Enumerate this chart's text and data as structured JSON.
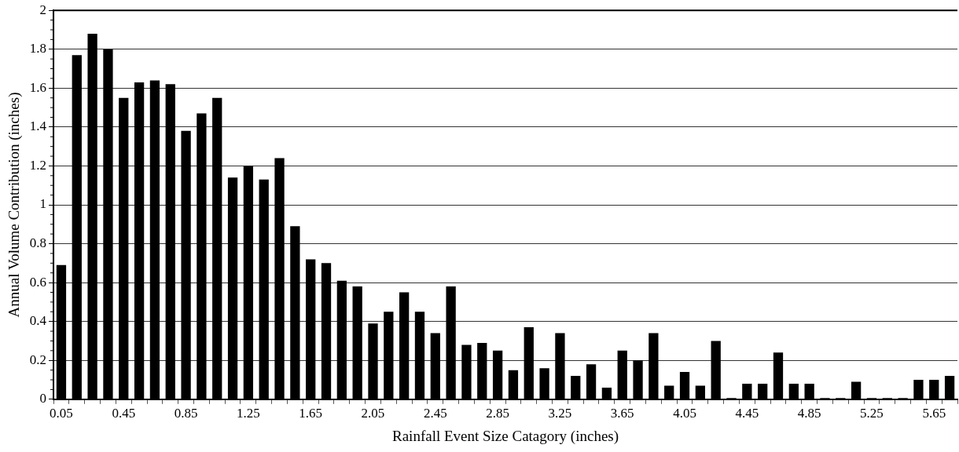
{
  "chart_data": {
    "type": "bar",
    "xlabel": "Rainfall Event Size Catagory (inches)",
    "ylabel": "Annual Volume Contribution (inches)",
    "categories": [
      "0.05",
      null,
      null,
      null,
      "0.45",
      null,
      null,
      null,
      "0.85",
      null,
      null,
      null,
      "1.25",
      null,
      null,
      null,
      "1.65",
      null,
      null,
      null,
      "2.05",
      null,
      null,
      null,
      "2.45",
      null,
      null,
      null,
      "2.85",
      null,
      null,
      null,
      "3.25",
      null,
      null,
      null,
      "3.65",
      null,
      null,
      null,
      "4.05",
      null,
      null,
      null,
      "4.45",
      null,
      null,
      null,
      "4.85",
      null,
      null,
      null,
      "5.25",
      null,
      null,
      null,
      "5.65",
      null
    ],
    "values": [
      0.69,
      1.77,
      1.88,
      1.8,
      1.55,
      1.63,
      1.64,
      1.62,
      1.38,
      1.47,
      1.55,
      1.14,
      1.2,
      1.13,
      1.24,
      0.89,
      0.72,
      0.7,
      0.61,
      0.58,
      0.39,
      0.45,
      0.55,
      0.45,
      0.34,
      0.58,
      0.28,
      0.29,
      0.25,
      0.15,
      0.37,
      0.16,
      0.34,
      0.12,
      0.18,
      0.06,
      0.25,
      0.2,
      0.34,
      0.07,
      0.14,
      0.07,
      0.3,
      0,
      0.08,
      0.08,
      0.24,
      0.08,
      0.08,
      0,
      0,
      0.09,
      0,
      0,
      0,
      0.1,
      0.1,
      0.12
    ],
    "color": "#000000",
    "ylim": [
      0,
      2
    ],
    "yticks": [
      0,
      0.2,
      0.4,
      0.6,
      0.8,
      1,
      1.2,
      1.4,
      1.6,
      1.8,
      2
    ],
    "grid": "y",
    "legend": false
  }
}
